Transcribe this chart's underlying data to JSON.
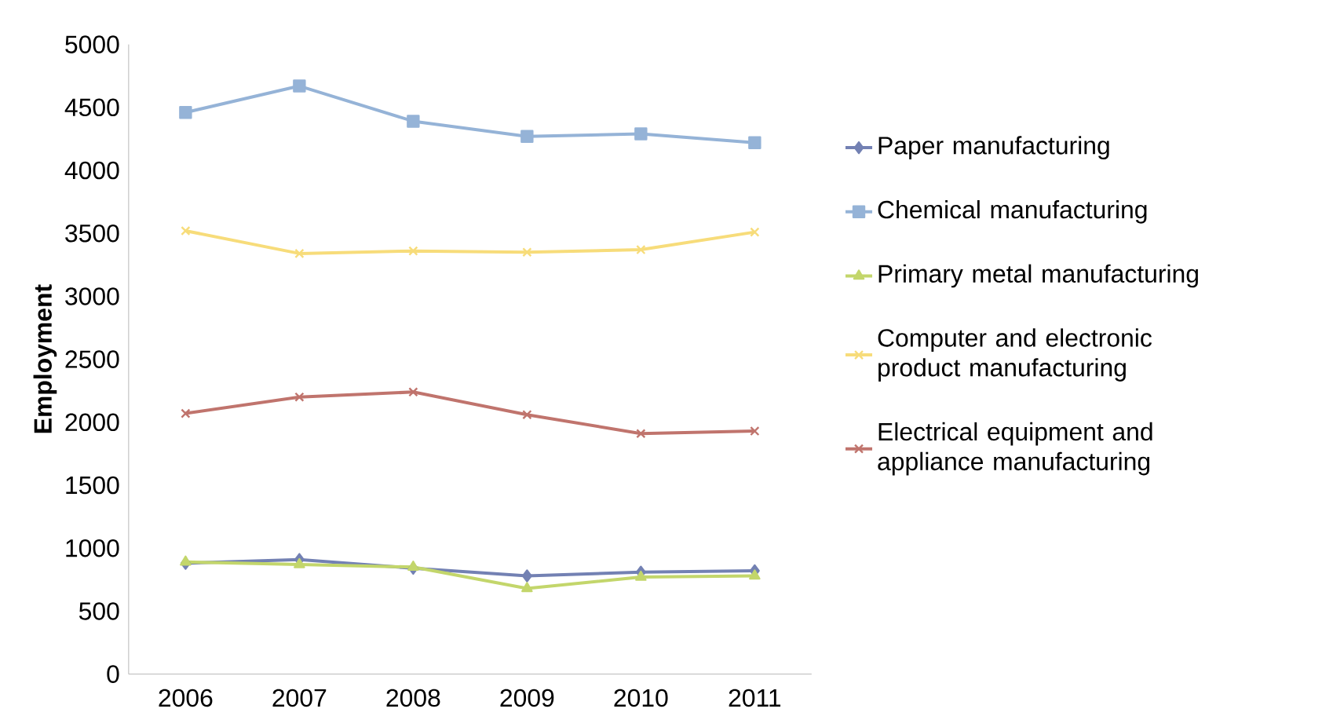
{
  "chart_data": {
    "type": "line",
    "ylabel": "Employment",
    "categories": [
      "2006",
      "2007",
      "2008",
      "2009",
      "2010",
      "2011"
    ],
    "series": [
      {
        "name": "Paper manufacturing",
        "color": "#7381b3",
        "marker": "diamond",
        "values": [
          880,
          910,
          840,
          780,
          810,
          820
        ]
      },
      {
        "name": "Chemical manufacturing",
        "color": "#95b3d7",
        "marker": "square",
        "values": [
          4460,
          4670,
          4390,
          4270,
          4290,
          4220
        ]
      },
      {
        "name": "Primary metal manufacturing",
        "color": "#c3d66b",
        "marker": "triangle",
        "values": [
          890,
          870,
          850,
          680,
          770,
          780
        ]
      },
      {
        "name": "Computer and electronic product manufacturing",
        "color": "#f7dc7a",
        "marker": "cross",
        "values": [
          3520,
          3340,
          3360,
          3350,
          3370,
          3510
        ]
      },
      {
        "name": "Electrical equipment and appliance manufacturing",
        "color": "#c0746d",
        "marker": "cross",
        "values": [
          2070,
          2200,
          2240,
          2060,
          1910,
          1930
        ]
      }
    ],
    "ylim": [
      0,
      5000
    ],
    "yticks": [
      0,
      500,
      1000,
      1500,
      2000,
      2500,
      3000,
      3500,
      4000,
      4500,
      5000
    ],
    "grid": false,
    "legend": "right",
    "line_style": "solid"
  }
}
